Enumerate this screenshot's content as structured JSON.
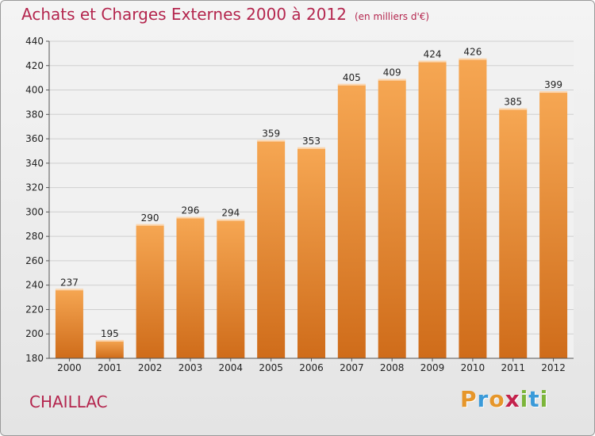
{
  "title": "Achats et Charges Externes 2000 à 2012",
  "unit_note": "(en milliers d'€)",
  "town": "CHAILLAC",
  "logo": {
    "letters": [
      "P",
      "r",
      "o",
      "x",
      "i",
      "t",
      "i"
    ],
    "colors": [
      "#e6962a",
      "#3a9ad9",
      "#e6962a",
      "#c3224c",
      "#7cb53a",
      "#3a9ad9",
      "#7cb53a"
    ]
  },
  "colors": {
    "bar_top": "#f6a753",
    "bar_bottom": "#cf6c1a",
    "title": "#b4264e",
    "grid": "#cfcfcf"
  },
  "chart_data": {
    "type": "bar",
    "categories": [
      "2000",
      "2001",
      "2002",
      "2003",
      "2004",
      "2005",
      "2006",
      "2007",
      "2008",
      "2009",
      "2010",
      "2011",
      "2012"
    ],
    "values": [
      237,
      195,
      290,
      296,
      294,
      359,
      353,
      405,
      409,
      424,
      426,
      385,
      399
    ],
    "ylim": [
      180,
      440
    ],
    "yticks": [
      180,
      200,
      220,
      240,
      260,
      280,
      300,
      320,
      340,
      360,
      380,
      400,
      420,
      440
    ],
    "grid": true
  }
}
